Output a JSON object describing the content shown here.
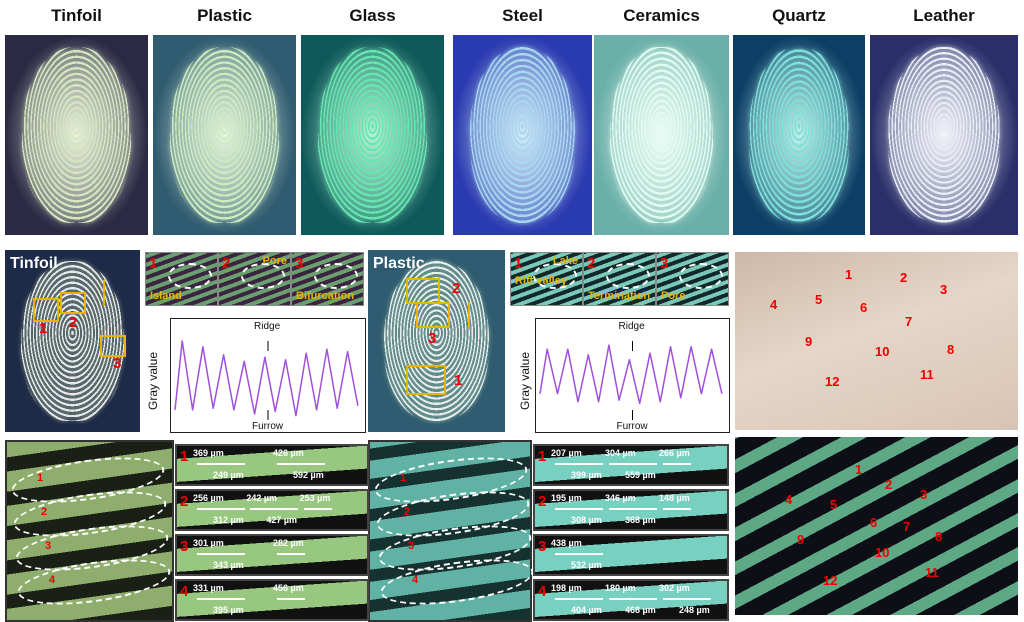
{
  "top_row": [
    {
      "label": "Tinfoil",
      "bg": "#2b2a44",
      "glow": "#d8e6c0"
    },
    {
      "label": "Plastic",
      "bg": "#2f5c70",
      "glow": "#cdebc0"
    },
    {
      "label": "Glass",
      "bg": "#0e5a5a",
      "glow": "#68e6b0"
    },
    {
      "label": "Steel",
      "bg": "#2a3ab0",
      "glow": "#a8d8f0"
    },
    {
      "label": "Ceramics",
      "bg": "#6ab0a8",
      "glow": "#e0fbf0"
    },
    {
      "label": "Quartz",
      "bg": "#0b3f66",
      "glow": "#7fe0d8"
    },
    {
      "label": "Leather",
      "bg": "#2a2f6a",
      "glow": "#e8ecf4"
    }
  ],
  "tinfoil_panel": {
    "label": "Tinfoil",
    "markers": [
      "1",
      "2",
      "3"
    ],
    "insets": [
      {
        "num": "1",
        "text": "Island"
      },
      {
        "num": "2",
        "text": "Pore"
      },
      {
        "num": "3",
        "text": "Bifurcation"
      }
    ],
    "graph": {
      "ylabel": "Gray value",
      "ridge": "Ridge",
      "furrow": "Furrow"
    },
    "strips": [
      {
        "num": "1",
        "values": [
          "369 µm",
          "426 µm",
          "249 µm",
          "592 µm"
        ]
      },
      {
        "num": "2",
        "values": [
          "256 µm",
          "242 µm",
          "253 µm",
          "312 µm",
          "427 µm"
        ]
      },
      {
        "num": "3",
        "values": [
          "301 µm",
          "282 µm",
          "343 µm"
        ]
      },
      {
        "num": "4",
        "values": [
          "331 µm",
          "456 µm",
          "395 µm"
        ]
      }
    ],
    "ellipse_labels": [
      "1",
      "2",
      "3",
      "4"
    ]
  },
  "plastic_panel": {
    "label": "Plastic",
    "markers": [
      "2",
      "3",
      "1"
    ],
    "insets": [
      {
        "num": "1",
        "text": "Lake",
        "text2": "Rift valley"
      },
      {
        "num": "2",
        "text": "Termination"
      },
      {
        "num": "3",
        "text": "Pore"
      }
    ],
    "graph": {
      "ylabel": "Gray value",
      "ridge": "Ridge",
      "furrow": "Furrow"
    },
    "strips": [
      {
        "num": "1",
        "values": [
          "207 µm",
          "304 µm",
          "266 µm",
          "399 µm",
          "559 µm"
        ]
      },
      {
        "num": "2",
        "values": [
          "195 µm",
          "346 µm",
          "148 µm",
          "308 µm",
          "368 µm"
        ]
      },
      {
        "num": "3",
        "values": [
          "438 µm",
          "532 µm"
        ]
      },
      {
        "num": "4",
        "values": [
          "198 µm",
          "180 µm",
          "302 µm",
          "404 µm",
          "468 µm",
          "248 µm"
        ]
      }
    ],
    "ellipse_labels": [
      "1",
      "2",
      "3",
      "4"
    ]
  },
  "leather_numbers": [
    "1",
    "2",
    "3",
    "4",
    "5",
    "6",
    "7",
    "8",
    "9",
    "10",
    "11",
    "12"
  ],
  "chart_data": [
    {
      "type": "line",
      "ylabel": "Gray value",
      "annotations": [
        "Ridge",
        "Furrow"
      ],
      "color": "#a050e0",
      "peaks": [
        0.95,
        0.88,
        0.78,
        0.7,
        0.75,
        0.72,
        0.8,
        0.85,
        0.82
      ],
      "troughs": [
        0.1,
        0.12,
        0.1,
        0.05,
        0.08,
        0.03,
        0.1,
        0.12,
        0.15
      ]
    },
    {
      "type": "line",
      "ylabel": "Gray value",
      "annotations": [
        "Ridge",
        "Furrow"
      ],
      "color": "#a050e0",
      "peaks": [
        0.85,
        0.85,
        0.78,
        0.9,
        0.72,
        0.8,
        0.88,
        0.88,
        0.85
      ],
      "troughs": [
        0.3,
        0.2,
        0.2,
        0.22,
        0.18,
        0.2,
        0.25,
        0.3,
        0.3
      ]
    }
  ]
}
